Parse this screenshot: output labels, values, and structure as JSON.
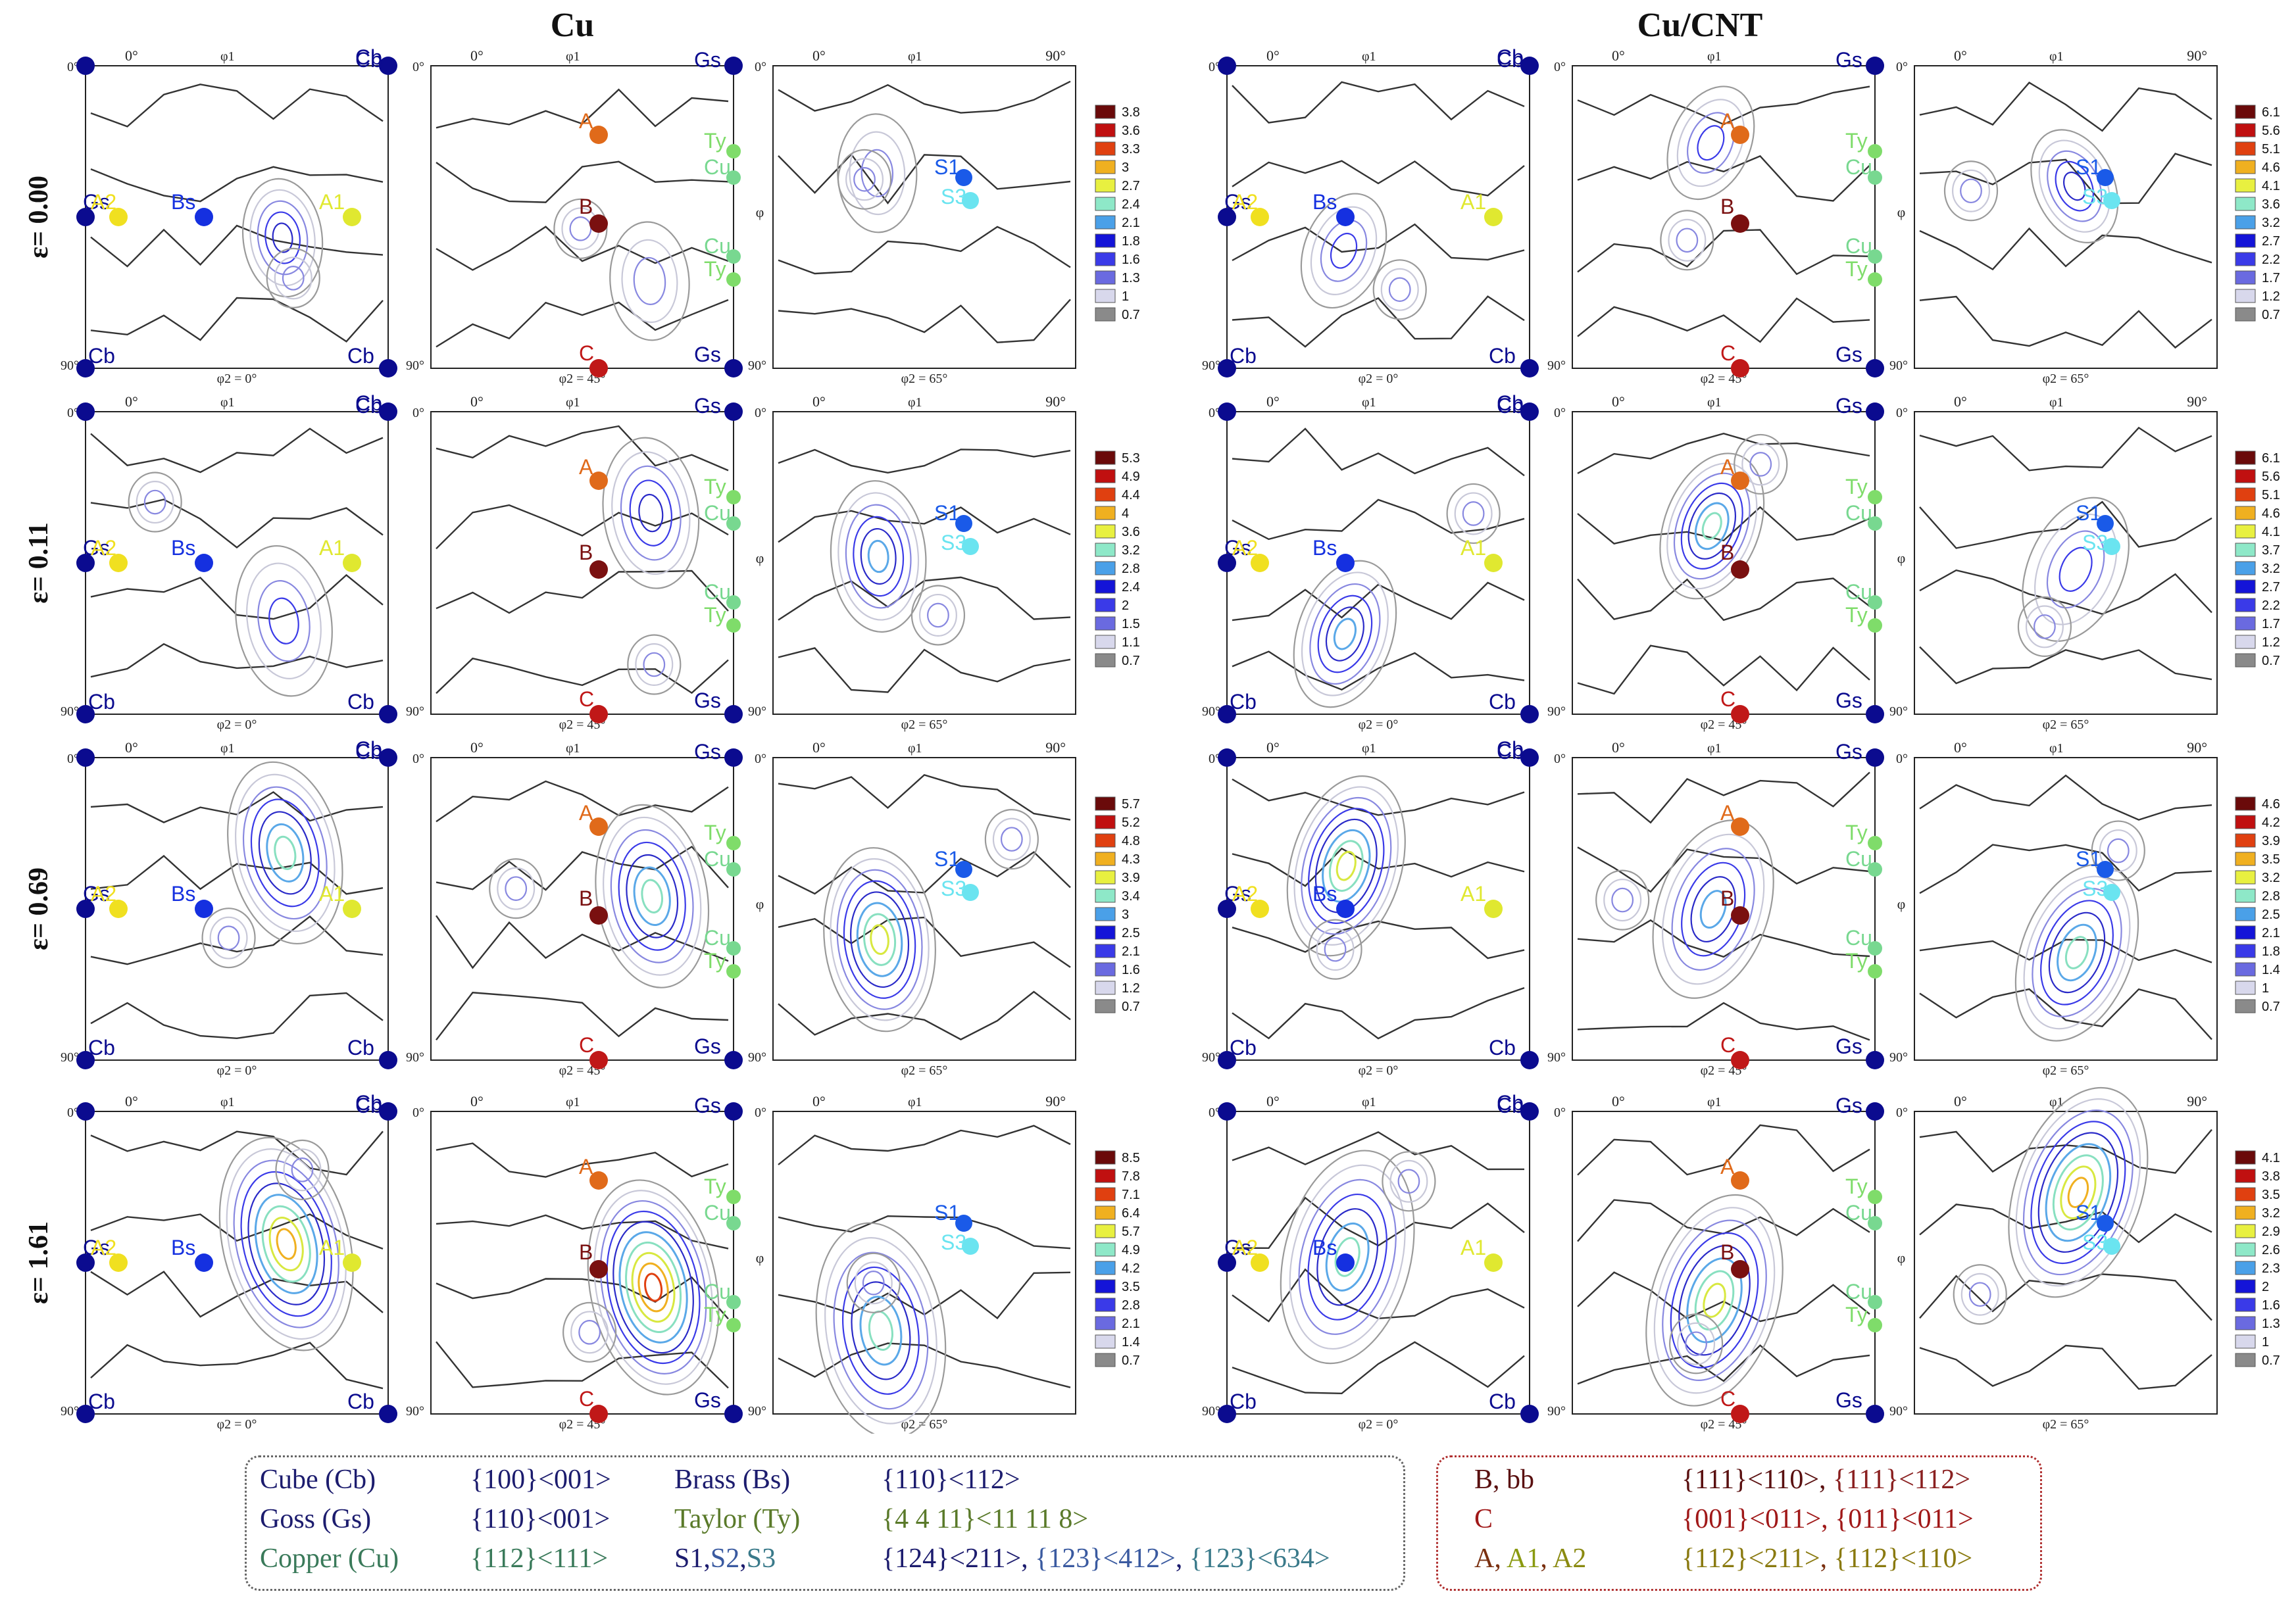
{
  "figure": {
    "group_titles": [
      "Cu",
      "Cu/CNT"
    ],
    "strain_labels": [
      "ε= 0.00",
      "ε= 0.11",
      "ε= 0.69",
      "ε= 1.61"
    ],
    "panel_captions": [
      "φ2 = 0°",
      "φ2 = 45°",
      "φ2 = 65°"
    ],
    "axis": {
      "phi1": "φ1",
      "phi": "φ",
      "zero": "0°",
      "ninety": "90°"
    },
    "components": {
      "Cb": {
        "label": "Cb",
        "color": "#0b0b8f"
      },
      "Gs": {
        "label": "Gs",
        "color": "#0b0b8f"
      },
      "Bs": {
        "label": "Bs",
        "color": "#1530e0"
      },
      "A": {
        "label": "A",
        "color": "#e06a1a"
      },
      "A1": {
        "label": "A1",
        "color": "#e0e830"
      },
      "A2": {
        "label": "A2",
        "color": "#f0e020"
      },
      "B": {
        "label": "B",
        "color": "#7a1010"
      },
      "C": {
        "label": "C",
        "color": "#c01818"
      },
      "Ty": {
        "label": "Ty",
        "color": "#7fdc6a"
      },
      "Cu": {
        "label": "Cu",
        "color": "#78d890"
      },
      "S1": {
        "label": "S1",
        "color": "#1a5ae8"
      },
      "S3": {
        "label": "S3",
        "color": "#6ae4f0"
      }
    },
    "colorbar_colors": [
      "#3a3a3a",
      "#8a8a8a",
      "#d8d8ec",
      "#6a6ae0",
      "#3a3ae8",
      "#1414d8",
      "#4aa0e8",
      "#8ee8c8",
      "#e8f040",
      "#f0b020",
      "#e04010",
      "#c01010",
      "#6a0a0a"
    ],
    "colorbars": {
      "Cu": [
        [
          3.8,
          3.6,
          3.3,
          3,
          2.7,
          2.4,
          2.1,
          1.8,
          1.6,
          1.3,
          1,
          0.7
        ],
        [
          5.3,
          4.9,
          4.4,
          4,
          3.6,
          3.2,
          2.8,
          2.4,
          2,
          1.5,
          1.1,
          0.7
        ],
        [
          5.7,
          5.2,
          4.8,
          4.3,
          3.9,
          3.4,
          3,
          2.5,
          2.1,
          1.6,
          1.2,
          0.7
        ],
        [
          8.5,
          7.8,
          7.1,
          6.4,
          5.7,
          4.9,
          4.2,
          3.5,
          2.8,
          2.1,
          1.4,
          0.7
        ]
      ],
      "Cu/CNT": [
        [
          6.1,
          5.6,
          5.1,
          4.6,
          4.1,
          3.6,
          3.2,
          2.7,
          2.2,
          1.7,
          1.2,
          0.7
        ],
        [
          6.1,
          5.6,
          5.1,
          4.6,
          4.1,
          3.7,
          3.2,
          2.7,
          2.2,
          1.7,
          1.2,
          0.7
        ],
        [
          4.6,
          4.2,
          3.9,
          3.5,
          3.2,
          2.8,
          2.5,
          2.1,
          1.8,
          1.4,
          1,
          0.7
        ],
        [
          4.1,
          3.8,
          3.5,
          3.2,
          2.9,
          2.6,
          2.3,
          2,
          1.6,
          1.3,
          1,
          0.7
        ]
      ]
    }
  },
  "legend_left": [
    {
      "name": "Cube (Cb)",
      "name_color": "#1c1c6e",
      "value": "{100}<001>",
      "value_color": "#1c1c6e"
    },
    {
      "name": "Brass (Bs)",
      "name_color": "#1c1c6e",
      "value": "{110}<112>",
      "value_color": "#1c1c6e"
    },
    {
      "name": "Goss (Gs)",
      "name_color": "#1c1c6e",
      "value": "{110}<001>",
      "value_color": "#1c1c6e"
    },
    {
      "name": "Taylor (Ty)",
      "name_color": "#5a7a2a",
      "value": "{4 4 11}<11 11 8>",
      "value_color": "#5a7a2a"
    },
    {
      "name": "Copper (Cu)",
      "name_color": "#3a7a5a",
      "value": "{112}<111>",
      "value_color": "#3a7a5a"
    },
    {
      "name_parts": [
        "S1",
        ",",
        "S2",
        ",",
        "S3"
      ],
      "name_colors": [
        "#1c1c6e",
        "#1c1c6e",
        "#3a5aa0",
        "#1c1c6e",
        "#3a7a8a"
      ],
      "value_parts": [
        "{124}<211>",
        ", ",
        "{123}<412>",
        ", ",
        "{123}<634>"
      ],
      "value_colors": [
        "#1c1c6e",
        "#1c1c6e",
        "#3a5aa0",
        "#1c1c6e",
        "#3a7a8a"
      ]
    }
  ],
  "legend_right": [
    {
      "name_parts": [
        "B",
        ", ",
        "bb"
      ],
      "name_colors": [
        "#5a1010",
        "#5a1010",
        "#5a1010"
      ],
      "value_parts": [
        "{111}<110>",
        ", ",
        "{111}<112>"
      ],
      "value_colors": [
        "#5a1010",
        "#5a1010",
        "#8a2020"
      ]
    },
    {
      "name_parts": [
        "C"
      ],
      "name_colors": [
        "#a01818"
      ],
      "value_parts": [
        "{001}<011>",
        ", ",
        "{011}<011>"
      ],
      "value_colors": [
        "#a01818",
        "#a01818",
        "#a01818"
      ]
    },
    {
      "name_parts": [
        "A",
        ", ",
        "A1",
        ", ",
        "A2"
      ],
      "name_colors": [
        "#7a3010",
        "#7a3010",
        "#8a9a10",
        "#7a3010",
        "#8a8a10"
      ],
      "value_parts": [
        "{112}<211>",
        ", ",
        "{112}<110>"
      ],
      "value_colors": [
        "#8a7a10",
        "#7a3010",
        "#8a7a10"
      ]
    }
  ]
}
